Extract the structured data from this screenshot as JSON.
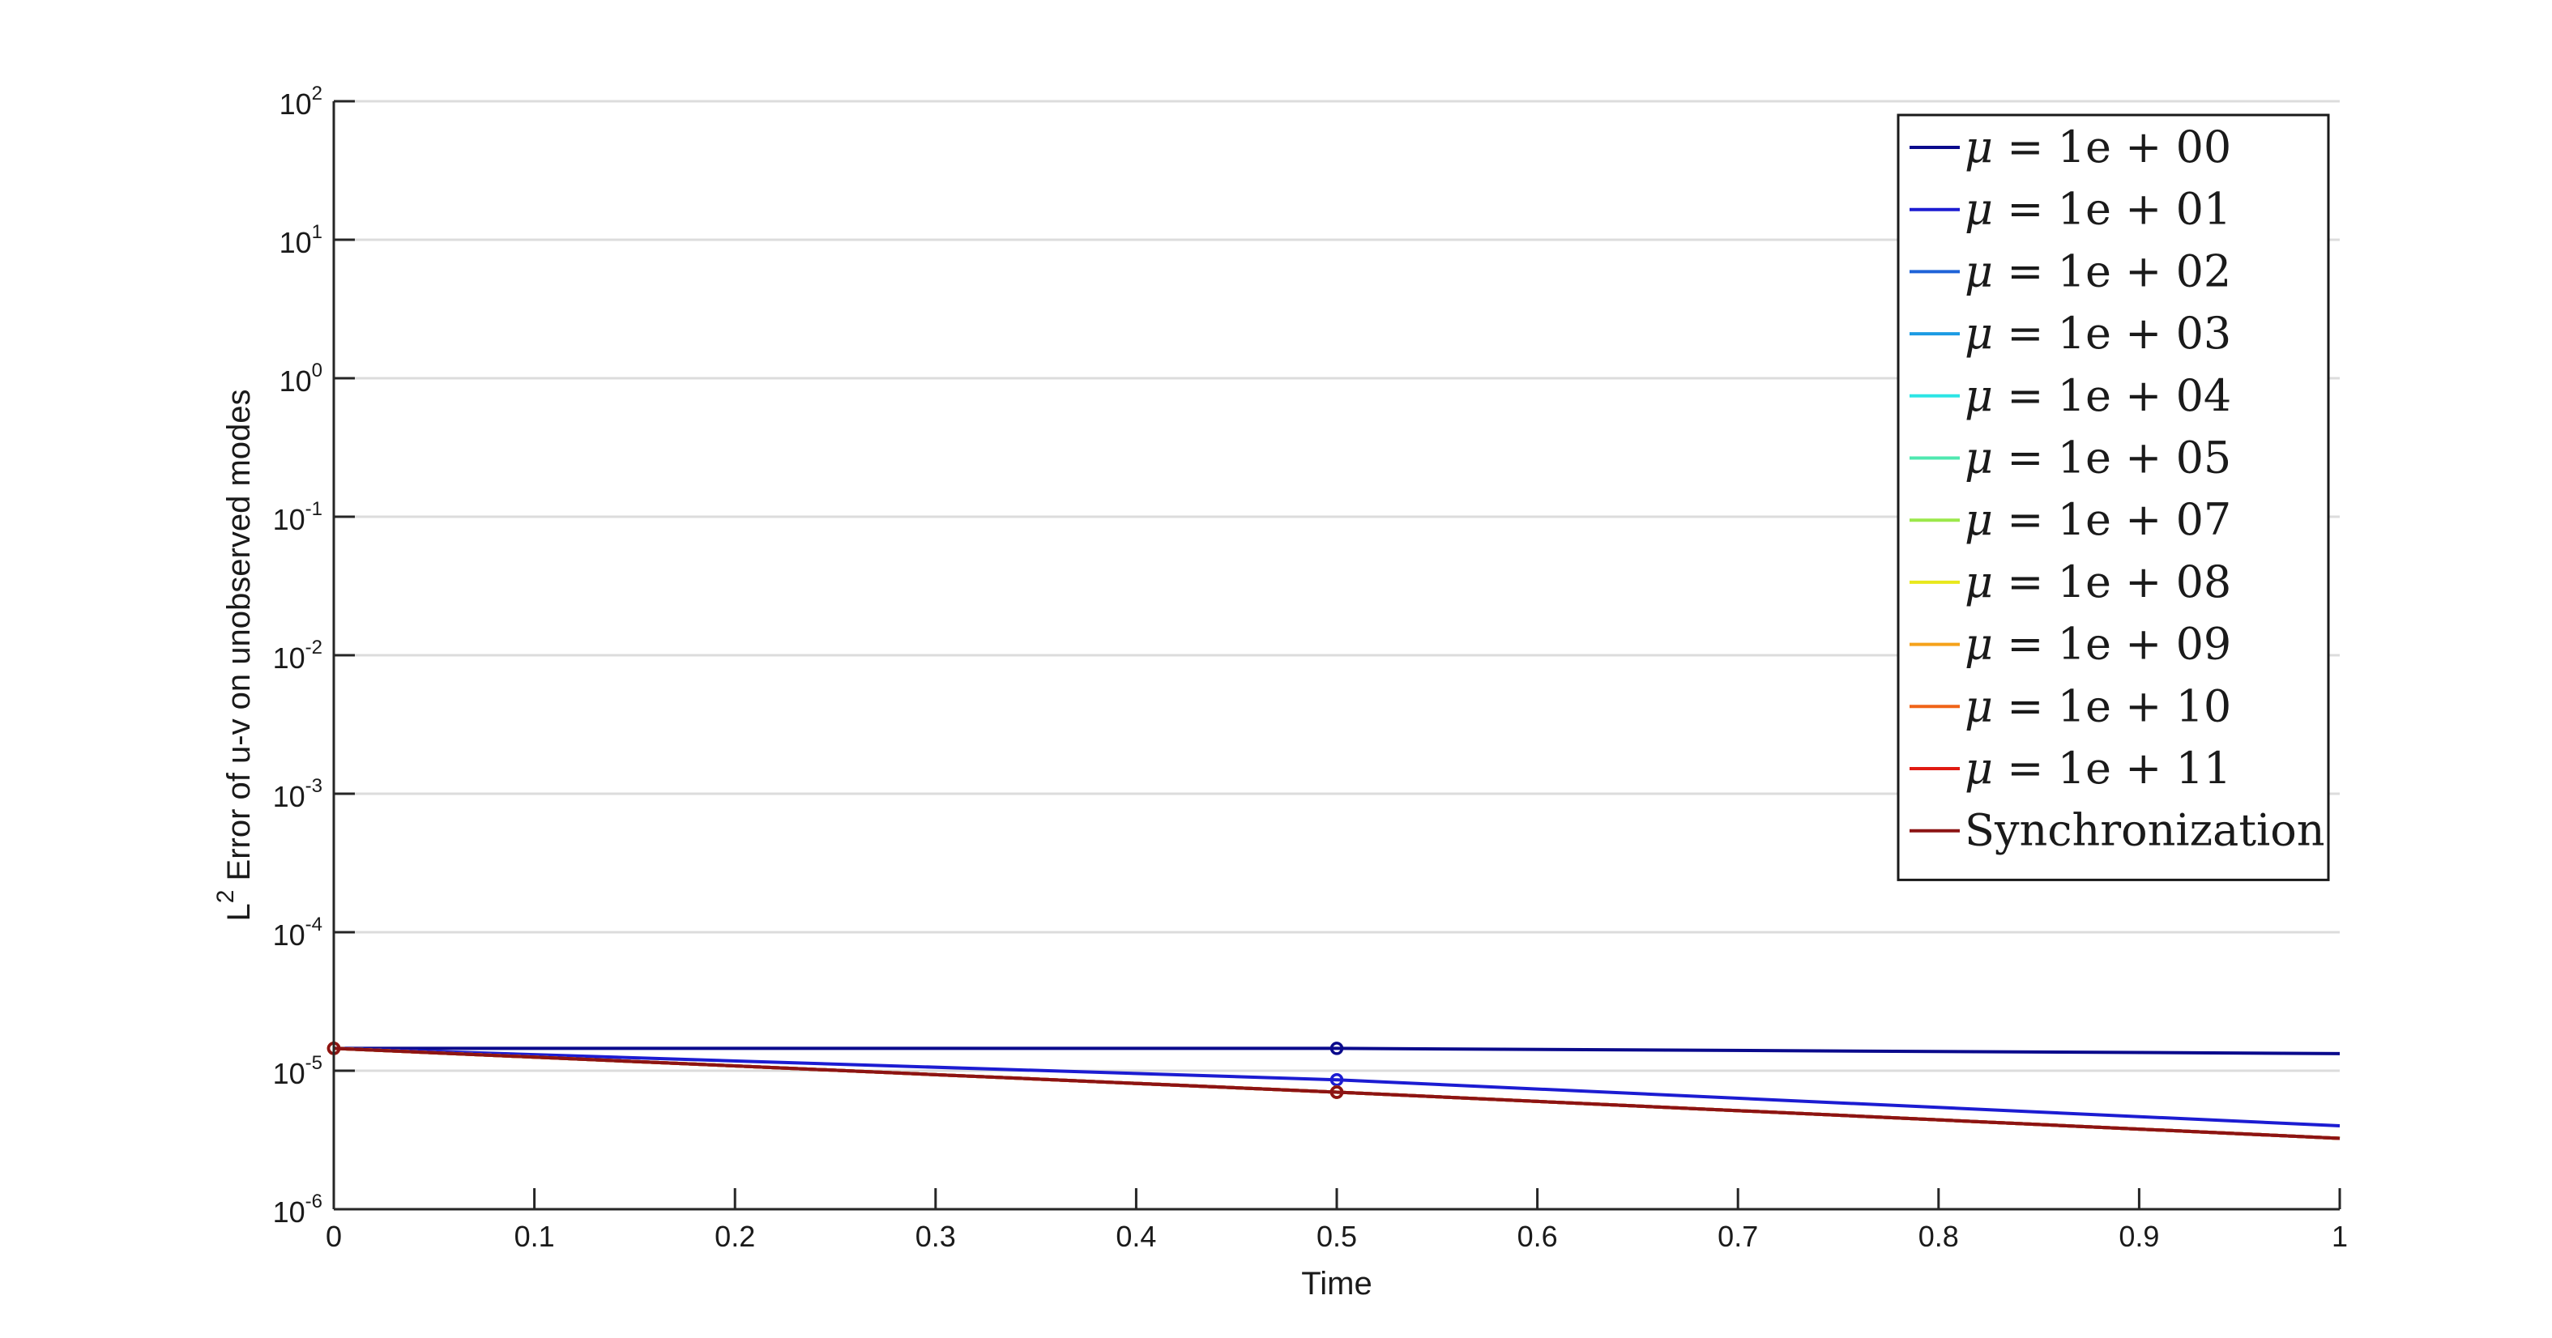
{
  "chart_data": {
    "type": "line",
    "xlabel": "Time",
    "ylabel": {
      "base": "L",
      "sup": "2",
      "rest": " Error of u-v on unobserved modes"
    },
    "xlim": [
      0,
      1
    ],
    "ylim": [
      1e-06,
      100
    ],
    "yscale": "log",
    "grid": "horizontal",
    "legend_position": "top-right",
    "x_ticks": [
      "0",
      "0.1",
      "0.2",
      "0.3",
      "0.4",
      "0.5",
      "0.6",
      "0.7",
      "0.8",
      "0.9",
      "1"
    ],
    "y_ticks": [
      {
        "base": "10",
        "exp": "2"
      },
      {
        "base": "10",
        "exp": "1"
      },
      {
        "base": "10",
        "exp": "0"
      },
      {
        "base": "10",
        "exp": "-1"
      },
      {
        "base": "10",
        "exp": "-2"
      },
      {
        "base": "10",
        "exp": "-3"
      },
      {
        "base": "10",
        "exp": "-4"
      },
      {
        "base": "10",
        "exp": "-5"
      },
      {
        "base": "10",
        "exp": "-6"
      }
    ],
    "x": [
      0,
      0.5,
      1
    ],
    "series": [
      {
        "name": "μ = 1e + 00",
        "mu": "μ",
        "rest": " = 1e + 00",
        "color": "#0a0a8c",
        "values": [
          1.45e-05,
          1.45e-05,
          1.33e-05
        ]
      },
      {
        "name": "μ = 1e + 01",
        "mu": "μ",
        "rest": " = 1e + 01",
        "color": "#1c1cd2",
        "values": [
          1.45e-05,
          8.6e-06,
          4e-06
        ]
      },
      {
        "name": "μ = 1e + 02",
        "mu": "μ",
        "rest": " = 1e + 02",
        "color": "#1f63d8",
        "values": [
          1.45e-05,
          7e-06,
          3.25e-06
        ]
      },
      {
        "name": "μ = 1e + 03",
        "mu": "μ",
        "rest": " = 1e + 03",
        "color": "#1c9be3",
        "values": [
          1.45e-05,
          7e-06,
          3.25e-06
        ]
      },
      {
        "name": "μ = 1e + 04",
        "mu": "μ",
        "rest": " = 1e + 04",
        "color": "#2ce5e5",
        "values": [
          1.45e-05,
          7e-06,
          3.25e-06
        ]
      },
      {
        "name": "μ = 1e + 05",
        "mu": "μ",
        "rest": " = 1e + 05",
        "color": "#4fe8b0",
        "values": [
          1.45e-05,
          7e-06,
          3.25e-06
        ]
      },
      {
        "name": "μ = 1e + 07",
        "mu": "μ",
        "rest": " = 1e + 07",
        "color": "#9be84a",
        "values": [
          1.45e-05,
          7e-06,
          3.25e-06
        ]
      },
      {
        "name": "μ = 1e + 08",
        "mu": "μ",
        "rest": " = 1e + 08",
        "color": "#e8e81c",
        "values": [
          1.45e-05,
          7e-06,
          3.25e-06
        ]
      },
      {
        "name": "μ = 1e + 09",
        "mu": "μ",
        "rest": " = 1e + 09",
        "color": "#f5a21a",
        "values": [
          1.45e-05,
          7e-06,
          3.25e-06
        ]
      },
      {
        "name": "μ = 1e + 10",
        "mu": "μ",
        "rest": " = 1e + 10",
        "color": "#f06418",
        "values": [
          1.45e-05,
          7e-06,
          3.25e-06
        ]
      },
      {
        "name": "μ = 1e + 11",
        "mu": "μ",
        "rest": " = 1e + 11",
        "color": "#e01a12",
        "values": [
          1.45e-05,
          7e-06,
          3.25e-06
        ]
      },
      {
        "name": "Synchronization",
        "mu": "",
        "rest": "Synchronization",
        "color": "#8c1414",
        "values": [
          1.45e-05,
          7e-06,
          3.25e-06
        ]
      }
    ]
  }
}
